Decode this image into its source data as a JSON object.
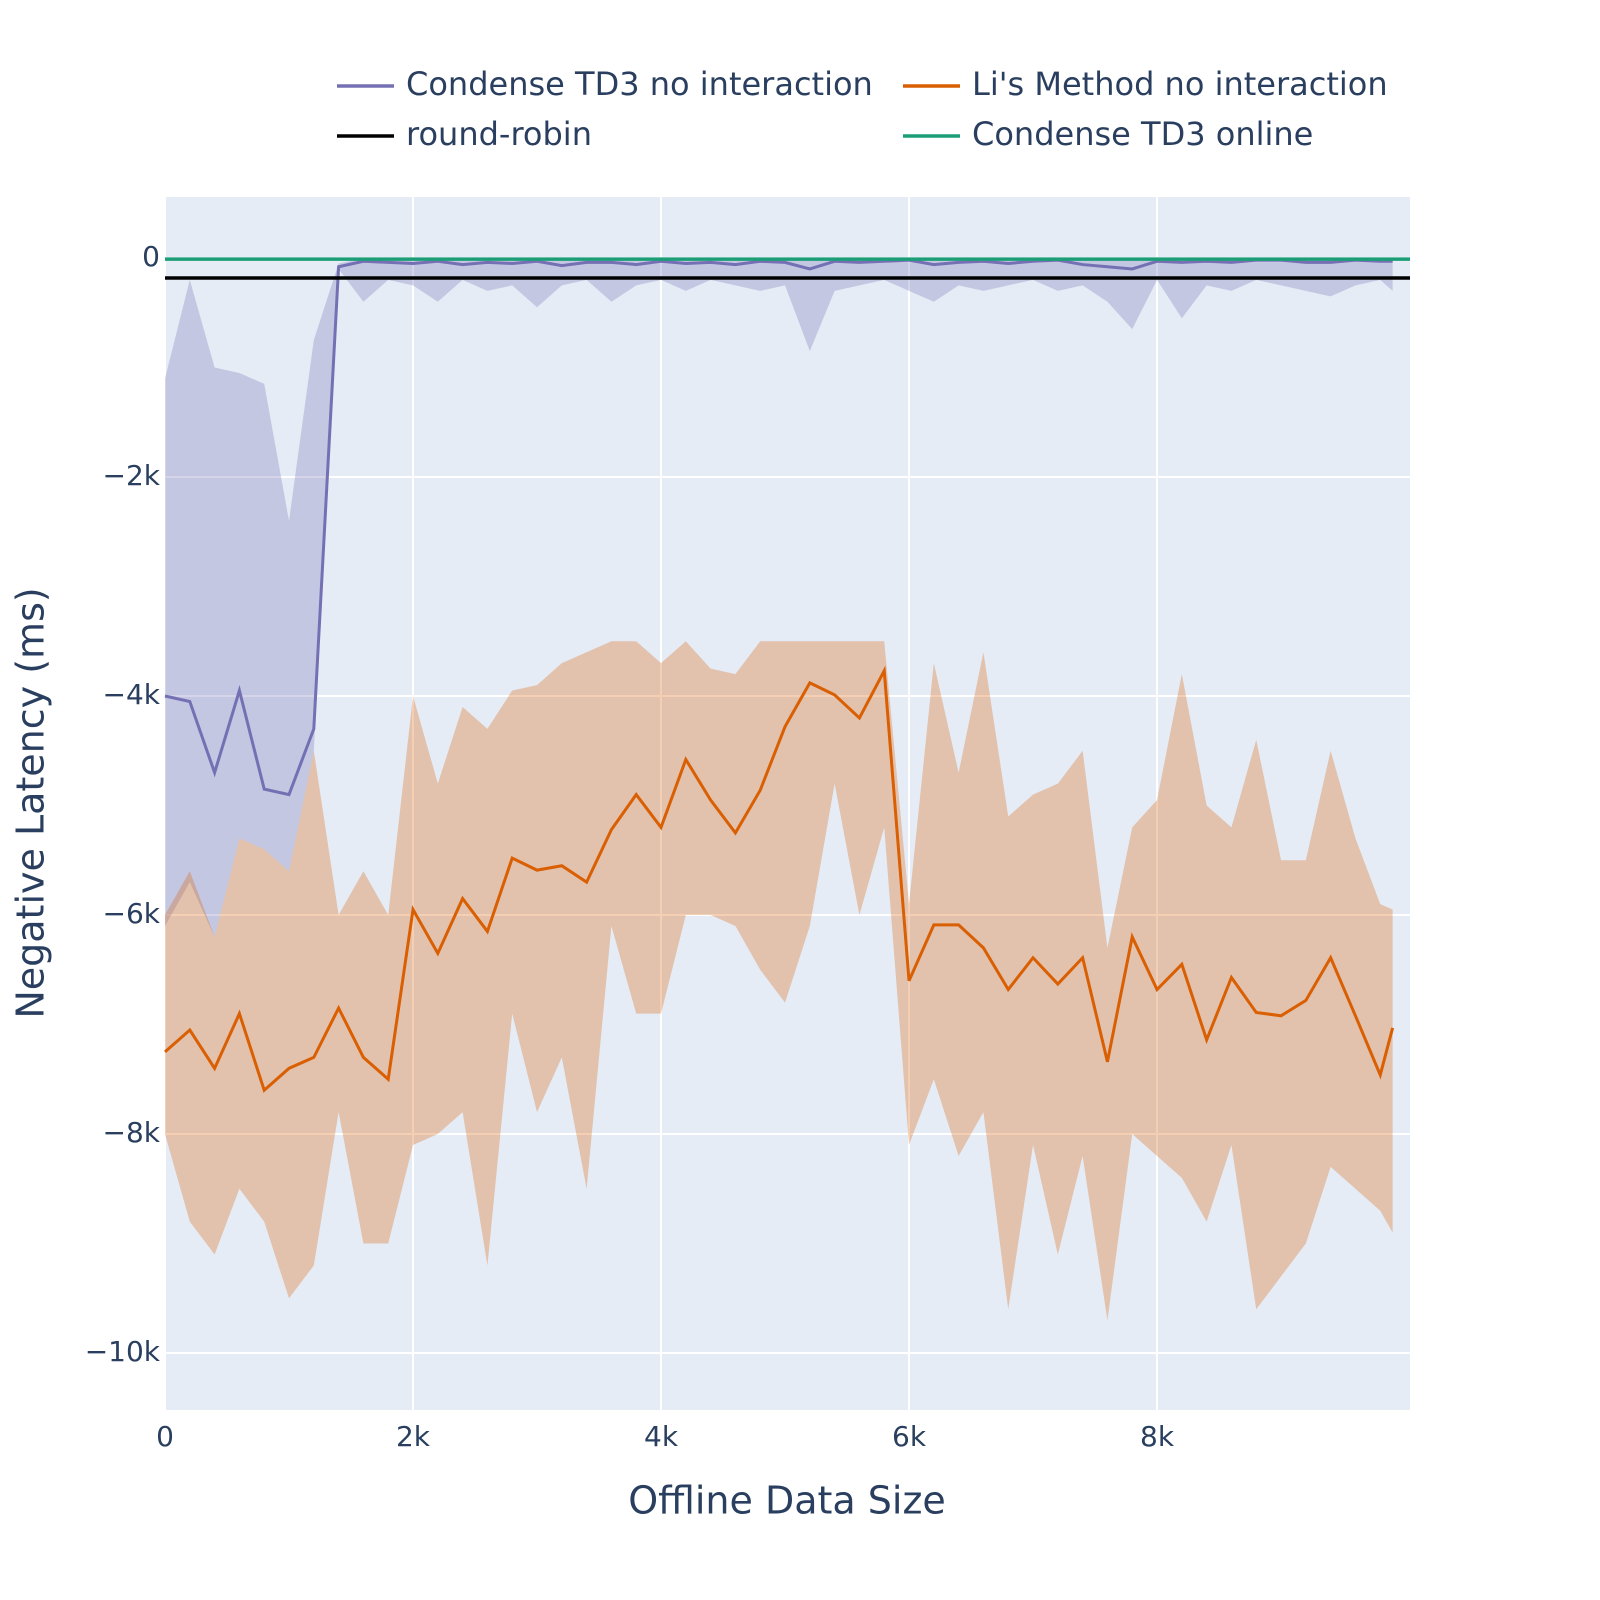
{
  "chart_data": {
    "type": "line-band",
    "x_label": "Offline Data Size",
    "y_label": "Negative Latency (ms)",
    "x": [
      0,
      200,
      400,
      600,
      800,
      1000,
      1200,
      1400,
      1600,
      1800,
      2000,
      2200,
      2400,
      2600,
      2800,
      3000,
      3200,
      3400,
      3600,
      3800,
      4000,
      4200,
      4400,
      4600,
      4800,
      5000,
      5200,
      5400,
      5600,
      5800,
      6000,
      6200,
      6400,
      6600,
      6800,
      7000,
      7200,
      7400,
      7600,
      7800,
      8000,
      8200,
      8400,
      8600,
      8800,
      9000,
      9200,
      9400,
      9600,
      9800,
      9900
    ],
    "xlim": [
      0,
      10040
    ],
    "ylim": [
      -10520,
      557
    ],
    "xticks": [
      0,
      {
        "value": 2000,
        "label": "2k"
      },
      {
        "value": 4000,
        "label": "4k"
      },
      {
        "value": 6000,
        "label": "6k"
      },
      {
        "value": 8000,
        "label": "8k"
      }
    ],
    "yticks": [
      0,
      {
        "value": -2000,
        "label": "−2k"
      },
      {
        "value": -4000,
        "label": "−4k"
      },
      {
        "value": -6000,
        "label": "−6k"
      },
      {
        "value": -8000,
        "label": "−8k"
      },
      {
        "value": -10000,
        "label": "−10k"
      }
    ],
    "grid": true,
    "series": [
      {
        "name": "Condense TD3 no interaction",
        "color": "#7570b3",
        "values": [
          -4000,
          -4050,
          -4700,
          -3950,
          -4850,
          -4900,
          -4300,
          -80,
          -30,
          -40,
          -50,
          -30,
          -60,
          -40,
          -50,
          -30,
          -70,
          -40,
          -40,
          -60,
          -30,
          -50,
          -40,
          -60,
          -30,
          -40,
          -100,
          -30,
          -40,
          -30,
          -20,
          -60,
          -40,
          -30,
          -50,
          -30,
          -20,
          -60,
          -80,
          -100,
          -30,
          -40,
          -30,
          -40,
          -20,
          -20,
          -40,
          -40,
          -20,
          -30,
          -30
        ],
        "upper": [
          -1100,
          -200,
          -1000,
          -1050,
          -1150,
          -2400,
          -750,
          -50,
          0,
          0,
          0,
          0,
          0,
          0,
          0,
          0,
          0,
          0,
          0,
          0,
          0,
          0,
          0,
          0,
          0,
          0,
          0,
          0,
          0,
          0,
          0,
          0,
          0,
          0,
          0,
          0,
          0,
          0,
          0,
          0,
          0,
          0,
          0,
          0,
          0,
          0,
          0,
          0,
          0,
          0,
          0
        ],
        "lower": [
          -6100,
          -5700,
          -6200,
          -5300,
          -5400,
          -5600,
          -4500,
          -100,
          -400,
          -200,
          -250,
          -400,
          -200,
          -300,
          -250,
          -450,
          -250,
          -200,
          -400,
          -250,
          -200,
          -300,
          -200,
          -250,
          -300,
          -250,
          -850,
          -300,
          -250,
          -200,
          -300,
          -400,
          -250,
          -300,
          -250,
          -200,
          -300,
          -250,
          -400,
          -650,
          -200,
          -550,
          -250,
          -300,
          -200,
          -250,
          -300,
          -350,
          -250,
          -200,
          -300
        ]
      },
      {
        "name": "Li's Method no interaction",
        "color": "#d95f02",
        "values": [
          -7250,
          -7050,
          -7400,
          -6900,
          -7600,
          -7400,
          -7300,
          -6850,
          -7300,
          -7500,
          -5950,
          -6350,
          -5850,
          -6150,
          -5480,
          -5590,
          -5550,
          -5700,
          -5220,
          -4900,
          -5200,
          -4580,
          -4950,
          -5250,
          -4860,
          -4280,
          -3880,
          -3990,
          -4200,
          -3770,
          -6600,
          -6090,
          -6090,
          -6300,
          -6680,
          -6390,
          -6630,
          -6390,
          -7340,
          -6200,
          -6680,
          -6450,
          -7140,
          -6570,
          -6890,
          -6920,
          -6780,
          -6390,
          -6920,
          -7460,
          -7030
        ],
        "upper": [
          -6000,
          -5600,
          -6200,
          -5300,
          -5400,
          -5600,
          -4500,
          -6000,
          -5600,
          -6000,
          -4000,
          -4800,
          -4100,
          -4300,
          -3950,
          -3900,
          -3700,
          -3600,
          -3500,
          -3500,
          -3700,
          -3500,
          -3750,
          -3800,
          -3500,
          -3500,
          -3500,
          -3500,
          -3500,
          -3500,
          -5900,
          -3700,
          -4700,
          -3600,
          -5100,
          -4900,
          -4800,
          -4500,
          -6300,
          -5200,
          -4950,
          -3800,
          -5000,
          -5200,
          -4400,
          -5500,
          -5500,
          -4500,
          -5300,
          -5900,
          -5950
        ],
        "lower": [
          -8000,
          -8800,
          -9100,
          -8500,
          -8800,
          -9500,
          -9200,
          -7800,
          -9000,
          -9000,
          -8100,
          -8000,
          -7800,
          -9200,
          -6900,
          -7800,
          -7300,
          -8500,
          -6100,
          -6900,
          -6900,
          -6000,
          -6000,
          -6100,
          -6500,
          -6800,
          -6100,
          -4800,
          -6000,
          -5200,
          -8100,
          -7500,
          -8200,
          -7800,
          -9600,
          -8100,
          -9100,
          -8200,
          -9700,
          -8000,
          -8200,
          -8400,
          -8800,
          -8100,
          -9600,
          -9300,
          -9000,
          -8300,
          -8500,
          -8700,
          -8900
        ]
      },
      {
        "name": "round-robin",
        "color": "#000000",
        "value": -183
      },
      {
        "name": "Condense TD3 online",
        "color": "#1b9e77",
        "value": -10
      }
    ]
  }
}
